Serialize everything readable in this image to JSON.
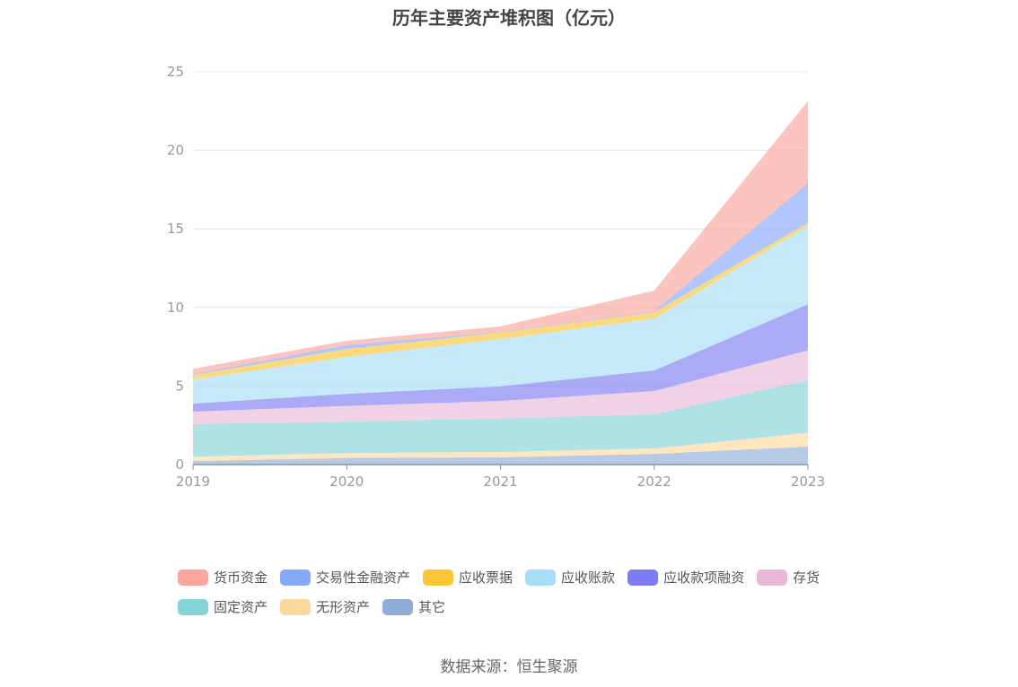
{
  "chart_data": {
    "type": "area",
    "stacked": true,
    "title": "历年主要资产堆积图（亿元）",
    "categories": [
      "2019",
      "2020",
      "2021",
      "2022",
      "2023"
    ],
    "ylim": [
      0,
      25
    ],
    "yticks": [
      0,
      5,
      10,
      15,
      20,
      25
    ],
    "grid": true,
    "legend_position": "bottom",
    "series": [
      {
        "name": "其它",
        "color": "#8eadd9",
        "values": [
          0.22,
          0.42,
          0.46,
          0.68,
          1.14
        ]
      },
      {
        "name": "无形资产",
        "color": "#fdd89c",
        "values": [
          0.28,
          0.32,
          0.34,
          0.35,
          0.88
        ]
      },
      {
        "name": "固定资产",
        "color": "#84d3d6",
        "values": [
          2.07,
          2.0,
          2.13,
          2.18,
          3.35
        ]
      },
      {
        "name": "存货",
        "color": "#e9b8d8",
        "values": [
          0.8,
          0.99,
          1.12,
          1.47,
          1.9
        ]
      },
      {
        "name": "应收款项融资",
        "color": "#7d7cf2",
        "values": [
          0.51,
          0.77,
          0.93,
          1.31,
          2.93
        ]
      },
      {
        "name": "应收账款",
        "color": "#a8ddf8",
        "values": [
          1.54,
          2.35,
          3.01,
          3.31,
          5.0
        ]
      },
      {
        "name": "应收票据",
        "color": "#fcc537",
        "values": [
          0.28,
          0.51,
          0.42,
          0.4,
          0.19
        ]
      },
      {
        "name": "交易性金融资产",
        "color": "#86a8fa",
        "values": [
          0.06,
          0.24,
          0.04,
          0.06,
          2.53
        ]
      },
      {
        "name": "货币资金",
        "color": "#fba59c",
        "values": [
          0.34,
          0.28,
          0.35,
          1.31,
          5.21
        ]
      }
    ],
    "legend_order": [
      "货币资金",
      "交易性金融资产",
      "应收票据",
      "应收账款",
      "应收款项融资",
      "存货",
      "固定资产",
      "无形资产",
      "其它"
    ]
  },
  "source": "数据来源：恒生聚源"
}
